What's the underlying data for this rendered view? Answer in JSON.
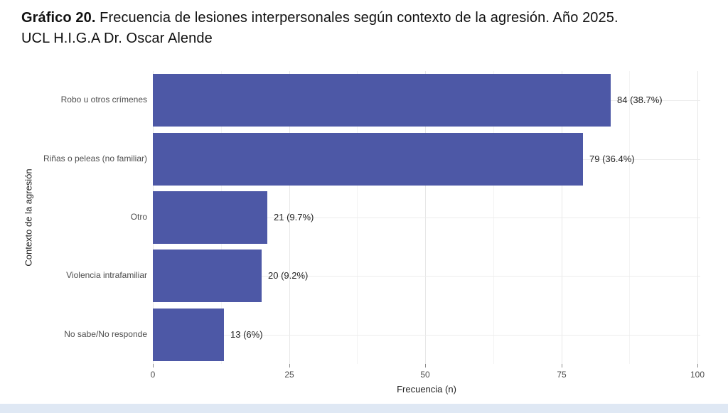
{
  "title": {
    "prefix": "Gráfico 20.",
    "rest": " Frecuencia de lesiones interpersonales según contexto de la agresión. Año 2025.",
    "line2": "UCL H.I.G.A Dr. Oscar Alende"
  },
  "chart_data": {
    "type": "bar",
    "orientation": "horizontal",
    "categories": [
      "Robo u otros crímenes",
      "Riñas o peleas (no familiar)",
      "Otro",
      "Violencia intrafamiliar",
      "No sabe/No responde"
    ],
    "values": [
      84,
      79,
      21,
      20,
      13
    ],
    "value_labels": [
      "84 (38.7%)",
      "79 (36.4%)",
      "21 (9.7%)",
      "20 (9.2%)",
      "13 (6%)"
    ],
    "xlabel": "Frecuencia (n)",
    "ylabel": "Contexto de la agresión",
    "xlim": [
      0,
      100.5
    ],
    "xticks": [
      0,
      25,
      50,
      75,
      100
    ],
    "xticks_minor": [
      12.5,
      37.5,
      62.5,
      87.5
    ],
    "grid": "major and minor vertical, major horizontal at category centers",
    "legend": "none",
    "bar_color": "#4d58a6"
  },
  "footer": {
    "strip_color": "#dfe8f4"
  }
}
